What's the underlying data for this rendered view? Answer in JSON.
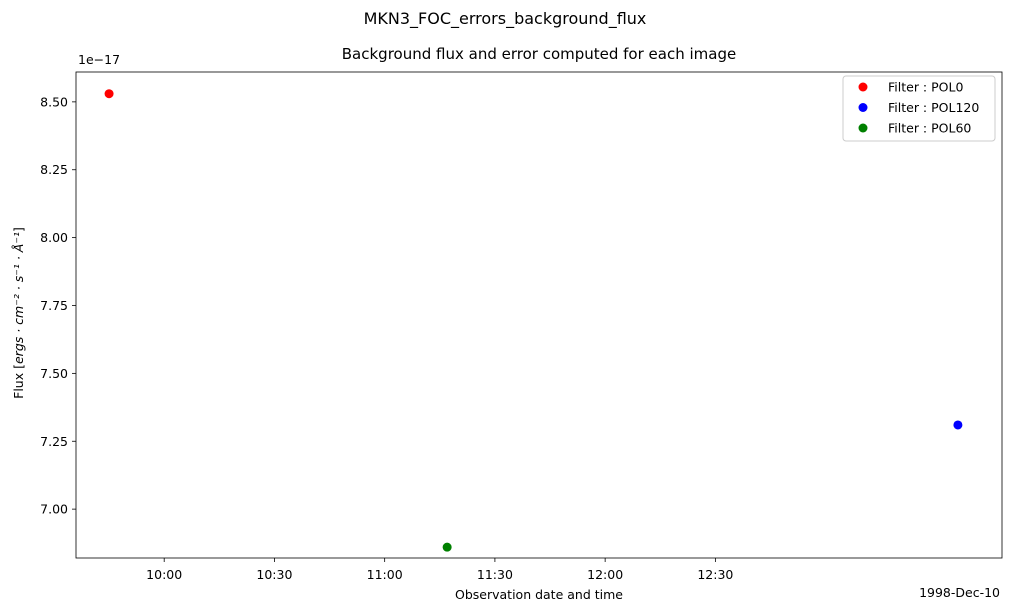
{
  "figure_title": "MKN3_FOC_errors_background_flux",
  "chart_data": {
    "type": "scatter",
    "title": "Background flux and error computed for each image",
    "xlabel": "Observation date and time",
    "ylabel_prefix": "Flux [",
    "ylabel_math": "ergs · cm⁻² · s⁻¹ · Å⁻¹",
    "ylabel_suffix": "]",
    "y_offset_label": "1e−17",
    "date_label": "1998-Dec-10",
    "x_time_range": [
      "09:36",
      "13:48"
    ],
    "ylim": [
      6.82e-17,
      8.61e-17
    ],
    "x_ticks": [
      "10:00",
      "10:30",
      "11:00",
      "11:30",
      "12:00",
      "12:30"
    ],
    "y_ticks": [
      "7.00",
      "7.25",
      "7.50",
      "7.75",
      "8.00",
      "8.25",
      "8.50"
    ],
    "y_tick_values": [
      7e-17,
      7.25e-17,
      7.5e-17,
      7.75e-17,
      8e-17,
      8.25e-17,
      8.5e-17
    ],
    "legend_position": "upper right",
    "series": [
      {
        "name": "Filter : POL0",
        "color": "#ff0000",
        "points": [
          {
            "x": "09:45",
            "y": 8.53e-17
          }
        ]
      },
      {
        "name": "Filter : POL120",
        "color": "#0000ff",
        "points": [
          {
            "x": "13:36",
            "y": 7.31e-17
          }
        ]
      },
      {
        "name": "Filter : POL60",
        "color": "#008000",
        "points": [
          {
            "x": "11:17",
            "y": 6.86e-17
          }
        ]
      }
    ]
  }
}
